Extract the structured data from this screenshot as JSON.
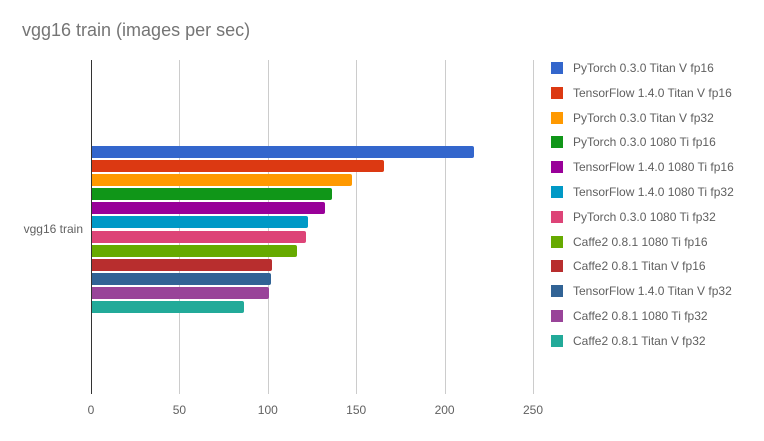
{
  "chart_data": {
    "type": "bar",
    "orientation": "horizontal",
    "title": "vgg16 train (images per sec)",
    "category_label": "vgg16 train",
    "categories": [
      "vgg16 train"
    ],
    "xlim": [
      0,
      250
    ],
    "x_ticks": [
      "0",
      "50",
      "100",
      "150",
      "200",
      "250"
    ],
    "grid": true,
    "legend_position": "right",
    "series": [
      {
        "name": "PyTorch 0.3.0 Titan V fp16",
        "color": "#3366cc",
        "value": 216
      },
      {
        "name": "TensorFlow 1.4.0 Titan V fp16",
        "color": "#dc3912",
        "value": 165
      },
      {
        "name": "PyTorch 0.3.0 Titan V fp32",
        "color": "#ff9900",
        "value": 147
      },
      {
        "name": "PyTorch 0.3.0 1080 Ti fp16",
        "color": "#109618",
        "value": 136
      },
      {
        "name": "TensorFlow 1.4.0 1080 Ti fp16",
        "color": "#990099",
        "value": 132
      },
      {
        "name": "TensorFlow 1.4.0 1080 Ti fp32",
        "color": "#0099c6",
        "value": 122
      },
      {
        "name": "PyTorch 0.3.0 1080 Ti fp32",
        "color": "#dd4477",
        "value": 121
      },
      {
        "name": "Caffe2 0.8.1 1080 Ti fp16",
        "color": "#66aa00",
        "value": 116
      },
      {
        "name": "Caffe2 0.8.1 Titan V fp16",
        "color": "#b82e2e",
        "value": 102
      },
      {
        "name": "TensorFlow 1.4.0 Titan V fp32",
        "color": "#316395",
        "value": 101
      },
      {
        "name": "Caffe2 0.8.1 1080 Ti fp32",
        "color": "#994499",
        "value": 100
      },
      {
        "name": "Caffe2 0.8.1 Titan V fp32",
        "color": "#22aa99",
        "value": 86
      }
    ],
    "colors": {
      "gridline": "#cccccc",
      "axis_baseline": "#333333",
      "title_text": "#757575",
      "tick_text": "#616161",
      "legend_text": "#5f5f5f",
      "background": "#ffffff"
    }
  }
}
